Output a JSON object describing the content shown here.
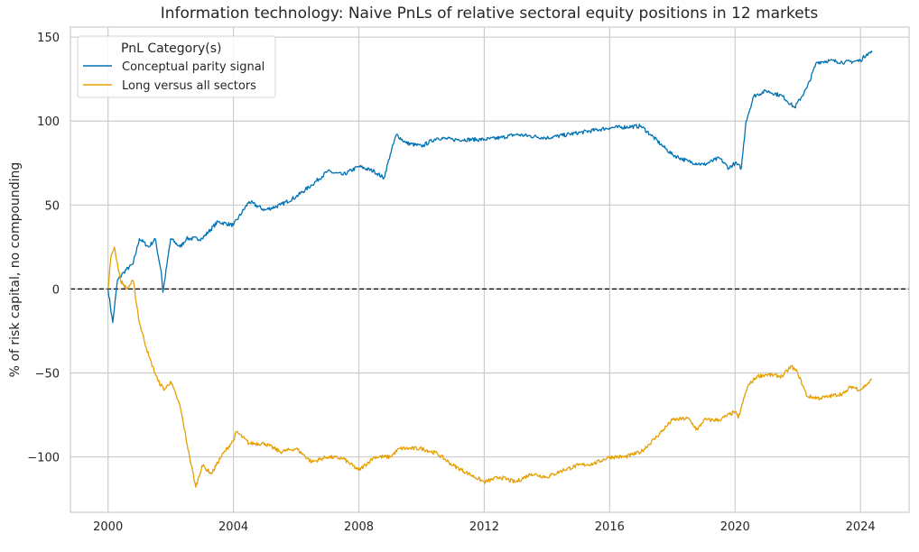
{
  "chart_data": {
    "type": "line",
    "title": "Information technology: Naive PnLs of relative sectoral equity positions in 12 markets",
    "xlabel": "",
    "ylabel": "% of risk capital, no compounding",
    "xlim": [
      1998.8,
      2025.55
    ],
    "ylim": [
      -133,
      156
    ],
    "xticks": [
      2000,
      2004,
      2008,
      2012,
      2016,
      2020,
      2024
    ],
    "xtick_labels": [
      "2000",
      "2004",
      "2008",
      "2012",
      "2016",
      "2020",
      "2024"
    ],
    "yticks": [
      150,
      100,
      50,
      0,
      -50,
      -100
    ],
    "ytick_labels": [
      "150",
      "100",
      "50",
      "0",
      "−50",
      "−100"
    ],
    "grid": true,
    "hline": {
      "y": 0,
      "style": "dashed",
      "color": "#000000"
    },
    "legend": {
      "title": "PnL Category(s)",
      "placement": "top-left"
    },
    "series": [
      {
        "name": "Conceptual parity signal",
        "color": "#0072b2",
        "x": [
          2000.0,
          2000.15,
          2000.3,
          2000.5,
          2000.8,
          2001.0,
          2001.3,
          2001.5,
          2001.7,
          2001.75,
          2002.0,
          2002.3,
          2002.5,
          2003.0,
          2003.5,
          2004.0,
          2004.5,
          2005.0,
          2005.5,
          2006.0,
          2006.5,
          2007.0,
          2007.5,
          2008.0,
          2008.5,
          2008.8,
          2009.0,
          2009.2,
          2009.5,
          2010.0,
          2010.5,
          2011.0,
          2012.0,
          2012.5,
          2013.0,
          2014.0,
          2015.0,
          2016.0,
          2017.0,
          2017.3,
          2017.7,
          2018.0,
          2018.5,
          2019.0,
          2019.5,
          2019.8,
          2020.0,
          2020.2,
          2020.35,
          2020.6,
          2021.0,
          2021.5,
          2021.9,
          2022.3,
          2022.6,
          2023.0,
          2023.5,
          2024.0,
          2024.2,
          2024.37
        ],
        "y": [
          0,
          -20,
          5,
          10,
          15,
          30,
          25,
          30,
          10,
          -2,
          30,
          25,
          30,
          30,
          40,
          38,
          52,
          47,
          50,
          55,
          62,
          70,
          68,
          73,
          70,
          66,
          80,
          92,
          87,
          85,
          90,
          89,
          89,
          90,
          92,
          90,
          93,
          96,
          97,
          92,
          85,
          80,
          76,
          74,
          78,
          72,
          75,
          72,
          100,
          115,
          118,
          115,
          108,
          120,
          135,
          136,
          135,
          136,
          140,
          141
        ]
      },
      {
        "name": "Long versus all sectors",
        "color": "#e69f00",
        "x": [
          2000.0,
          2000.1,
          2000.2,
          2000.4,
          2000.6,
          2000.8,
          2001.0,
          2001.3,
          2001.6,
          2001.8,
          2002.0,
          2002.3,
          2002.6,
          2002.8,
          2003.0,
          2003.3,
          2003.6,
          2004.0,
          2004.1,
          2004.5,
          2005.0,
          2005.5,
          2006.0,
          2006.5,
          2007.0,
          2007.5,
          2008.0,
          2008.5,
          2009.0,
          2009.3,
          2010.0,
          2010.5,
          2011.0,
          2011.5,
          2012.0,
          2012.5,
          2013.0,
          2013.5,
          2014.0,
          2014.5,
          2015.0,
          2015.5,
          2016.0,
          2016.5,
          2017.0,
          2017.5,
          2018.0,
          2018.5,
          2018.8,
          2019.0,
          2019.5,
          2020.0,
          2020.1,
          2020.4,
          2020.7,
          2021.0,
          2021.5,
          2021.8,
          2022.0,
          2022.3,
          2022.7,
          2023.0,
          2023.5,
          2023.7,
          2024.0,
          2024.37
        ],
        "y": [
          0,
          20,
          25,
          5,
          0,
          5,
          -20,
          -40,
          -55,
          -60,
          -55,
          -70,
          -100,
          -118,
          -105,
          -110,
          -100,
          -90,
          -85,
          -92,
          -92,
          -97,
          -95,
          -103,
          -100,
          -101,
          -108,
          -100,
          -100,
          -95,
          -95,
          -98,
          -105,
          -110,
          -115,
          -112,
          -115,
          -110,
          -112,
          -108,
          -105,
          -104,
          -100,
          -100,
          -97,
          -88,
          -78,
          -77,
          -84,
          -78,
          -78,
          -73,
          -77,
          -58,
          -52,
          -51,
          -52,
          -46,
          -50,
          -64,
          -65,
          -64,
          -62,
          -58,
          -60,
          -54
        ]
      }
    ]
  }
}
